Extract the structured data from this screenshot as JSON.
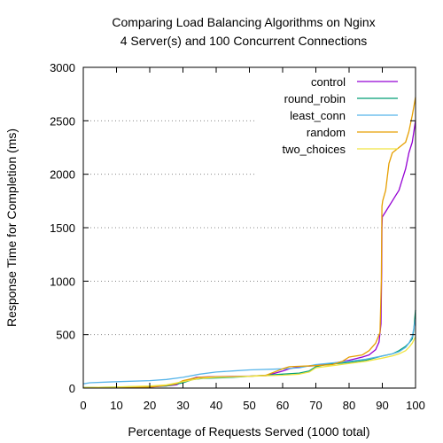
{
  "chart_data": {
    "type": "line",
    "title_lines": [
      "Comparing Load Balancing Algorithms on Nginx",
      "4 Server(s) and 100 Concurrent Connections"
    ],
    "xlabel": "Percentage of Requests Served (1000 total)",
    "ylabel": "Response Time for Completion (ms)",
    "xlim": [
      0,
      100
    ],
    "ylim": [
      0,
      3000
    ],
    "x_ticks": [
      0,
      10,
      20,
      30,
      40,
      50,
      60,
      70,
      80,
      90,
      100
    ],
    "y_ticks": [
      0,
      500,
      1000,
      1500,
      2000,
      2500,
      3000
    ],
    "grid": "horizontal-dotted",
    "legend_position": "top-right",
    "series": [
      {
        "name": "control",
        "color": "#9400d3",
        "points": [
          [
            0,
            3
          ],
          [
            10,
            5
          ],
          [
            20,
            10
          ],
          [
            25,
            20
          ],
          [
            28,
            30
          ],
          [
            30,
            60
          ],
          [
            32,
            80
          ],
          [
            34,
            100
          ],
          [
            38,
            105
          ],
          [
            45,
            110
          ],
          [
            50,
            112
          ],
          [
            55,
            115
          ],
          [
            60,
            160
          ],
          [
            62,
            180
          ],
          [
            65,
            200
          ],
          [
            70,
            210
          ],
          [
            75,
            230
          ],
          [
            80,
            260
          ],
          [
            84,
            290
          ],
          [
            86,
            310
          ],
          [
            88,
            360
          ],
          [
            89,
            430
          ],
          [
            89.6,
            600
          ],
          [
            89.8,
            1100
          ],
          [
            89.9,
            1500
          ],
          [
            90,
            1600
          ],
          [
            91,
            1650
          ],
          [
            92,
            1700
          ],
          [
            93,
            1750
          ],
          [
            94,
            1800
          ],
          [
            95,
            1850
          ],
          [
            96,
            1950
          ],
          [
            97,
            2050
          ],
          [
            98,
            2200
          ],
          [
            99,
            2300
          ],
          [
            99.6,
            2420
          ],
          [
            100,
            2500
          ]
        ]
      },
      {
        "name": "round_robin",
        "color": "#009e73",
        "points": [
          [
            0,
            5
          ],
          [
            10,
            10
          ],
          [
            20,
            15
          ],
          [
            25,
            20
          ],
          [
            30,
            50
          ],
          [
            33,
            80
          ],
          [
            36,
            90
          ],
          [
            45,
            100
          ],
          [
            50,
            110
          ],
          [
            55,
            120
          ],
          [
            60,
            130
          ],
          [
            65,
            140
          ],
          [
            68,
            160
          ],
          [
            70,
            200
          ],
          [
            73,
            220
          ],
          [
            80,
            240
          ],
          [
            85,
            260
          ],
          [
            90,
            300
          ],
          [
            93,
            320
          ],
          [
            95,
            350
          ],
          [
            97,
            390
          ],
          [
            98,
            420
          ],
          [
            99,
            460
          ],
          [
            99.5,
            550
          ],
          [
            100,
            730
          ]
        ]
      },
      {
        "name": "least_conn",
        "color": "#56b4e9",
        "points": [
          [
            0,
            40
          ],
          [
            2,
            50
          ],
          [
            10,
            60
          ],
          [
            20,
            70
          ],
          [
            25,
            80
          ],
          [
            30,
            100
          ],
          [
            35,
            130
          ],
          [
            40,
            150
          ],
          [
            45,
            160
          ],
          [
            50,
            170
          ],
          [
            60,
            180
          ],
          [
            65,
            190
          ],
          [
            70,
            220
          ],
          [
            75,
            235
          ],
          [
            80,
            250
          ],
          [
            85,
            270
          ],
          [
            90,
            300
          ],
          [
            93,
            320
          ],
          [
            95,
            340
          ],
          [
            97,
            380
          ],
          [
            98,
            420
          ],
          [
            99,
            480
          ],
          [
            99.5,
            560
          ],
          [
            100,
            650
          ]
        ]
      },
      {
        "name": "random",
        "color": "#e69f00",
        "points": [
          [
            0,
            2
          ],
          [
            10,
            5
          ],
          [
            20,
            10
          ],
          [
            25,
            25
          ],
          [
            28,
            40
          ],
          [
            30,
            70
          ],
          [
            33,
            90
          ],
          [
            35,
            100
          ],
          [
            40,
            105
          ],
          [
            50,
            110
          ],
          [
            55,
            120
          ],
          [
            60,
            180
          ],
          [
            62,
            200
          ],
          [
            70,
            210
          ],
          [
            75,
            220
          ],
          [
            78,
            250
          ],
          [
            80,
            290
          ],
          [
            84,
            310
          ],
          [
            86,
            350
          ],
          [
            88,
            420
          ],
          [
            89.3,
            520
          ],
          [
            89.7,
            1000
          ],
          [
            89.9,
            1700
          ],
          [
            90.1,
            1750
          ],
          [
            91,
            1850
          ],
          [
            92,
            2100
          ],
          [
            93,
            2200
          ],
          [
            95,
            2250
          ],
          [
            97,
            2300
          ],
          [
            98,
            2400
          ],
          [
            99,
            2550
          ],
          [
            100,
            2720
          ]
        ]
      },
      {
        "name": "two_choices",
        "color": "#f0e442",
        "points": [
          [
            0,
            5
          ],
          [
            10,
            10
          ],
          [
            20,
            20
          ],
          [
            25,
            30
          ],
          [
            30,
            60
          ],
          [
            35,
            90
          ],
          [
            40,
            100
          ],
          [
            50,
            110
          ],
          [
            60,
            120
          ],
          [
            65,
            130
          ],
          [
            68,
            150
          ],
          [
            70,
            190
          ],
          [
            75,
            210
          ],
          [
            80,
            230
          ],
          [
            85,
            250
          ],
          [
            90,
            280
          ],
          [
            93,
            300
          ],
          [
            95,
            320
          ],
          [
            97,
            350
          ],
          [
            98,
            380
          ],
          [
            99,
            420
          ],
          [
            100,
            480
          ]
        ]
      }
    ]
  }
}
